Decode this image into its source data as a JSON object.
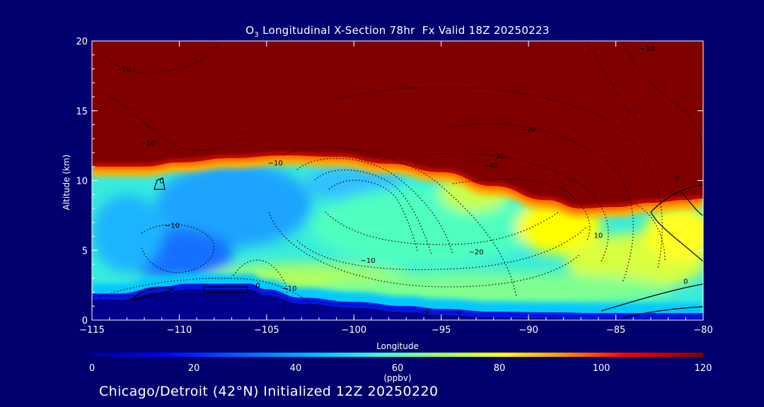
{
  "title": {
    "species": "O",
    "species_sub": "3",
    "text": " Longitudinal X-Section 78hr  Fx Valid 18Z 20250223"
  },
  "footer": "Chicago/Detroit (42°N) Initialized 12Z 20250220",
  "colors": {
    "background": "#00006e",
    "high_ozone": "#800000",
    "colormap": [
      "#00008c",
      "#0000ff",
      "#0064ff",
      "#00c8ff",
      "#40ffd0",
      "#a0ff60",
      "#ffff00",
      "#ff9600",
      "#ff0000",
      "#800000"
    ]
  },
  "chart_data": {
    "type": "heatmap",
    "title": "O3 Longitudinal X-Section 78hr  Fx Valid 18Z 20250223",
    "xlabel": "Longitude",
    "ylabel": "Altitude (km)",
    "xlim": [
      -115,
      -80
    ],
    "ylim": [
      0,
      20
    ],
    "xticks": [
      -115,
      -110,
      -105,
      -100,
      -95,
      -90,
      -85,
      -80
    ],
    "xtick_labels": [
      "−115",
      "−110",
      "−105",
      "−100",
      "−95",
      "−90",
      "−85",
      "−80"
    ],
    "yticks": [
      0,
      5,
      10,
      15,
      20
    ],
    "ytick_labels": [
      "0",
      "5",
      "10",
      "15",
      "20"
    ],
    "colorbar": {
      "label": "(ppbv)",
      "range": [
        0,
        120
      ],
      "ticks": [
        0,
        20,
        40,
        60,
        80,
        100,
        120
      ],
      "tick_labels": [
        "0",
        "20",
        "40",
        "60",
        "80",
        "100",
        "120"
      ]
    },
    "tropopause_altitude_km": {
      "longitude": [
        -115,
        -112,
        -110,
        -107,
        -104,
        -101,
        -98,
        -95,
        -92,
        -89,
        -87,
        -85,
        -83,
        -81,
        -80
      ],
      "altitude": [
        11.0,
        11.0,
        11.3,
        11.6,
        11.8,
        11.7,
        11.2,
        10.6,
        9.6,
        8.6,
        8.0,
        8.1,
        8.4,
        8.6,
        8.7
      ]
    },
    "surface_altitude_km": {
      "longitude": [
        -115,
        -113.5,
        -111,
        -109.5,
        -108,
        -106,
        -105,
        -103,
        -100,
        -97,
        -95,
        -92,
        -89,
        -86,
        -84,
        -82,
        -80
      ],
      "altitude": [
        1.5,
        1.5,
        2.0,
        2.2,
        2.2,
        2.2,
        1.8,
        1.2,
        0.9,
        0.6,
        0.4,
        0.2,
        0.15,
        0.1,
        0.1,
        0.1,
        0.1
      ]
    },
    "contour_labels": [
      {
        "lon": -113.2,
        "alt": 17.8,
        "label": "−10"
      },
      {
        "lon": -111.8,
        "alt": 12.5,
        "label": "−10"
      },
      {
        "lon": -104.5,
        "alt": 11.1,
        "label": "−10"
      },
      {
        "lon": -91.8,
        "alt": 11.6,
        "label": "−30"
      },
      {
        "lon": -92.2,
        "alt": 10.9,
        "label": "−40"
      },
      {
        "lon": -90.0,
        "alt": 13.5,
        "label": "−20"
      },
      {
        "lon": -83.2,
        "alt": 19.3,
        "label": "−10"
      },
      {
        "lon": -110.4,
        "alt": 6.6,
        "label": "−10"
      },
      {
        "lon": -93.0,
        "alt": 4.7,
        "label": "−20"
      },
      {
        "lon": -86.0,
        "alt": 5.9,
        "label": "10"
      },
      {
        "lon": -99.2,
        "alt": 4.1,
        "label": "−10"
      },
      {
        "lon": -103.7,
        "alt": 2.1,
        "label": "−10"
      },
      {
        "lon": -105.5,
        "alt": 2.3,
        "label": "0"
      },
      {
        "lon": -95.8,
        "alt": 0.5,
        "label": "0"
      },
      {
        "lon": -94.0,
        "alt": 0.4,
        "label": "0"
      },
      {
        "lon": -81.0,
        "alt": 2.6,
        "label": "0"
      },
      {
        "lon": -81.5,
        "alt": 10.0,
        "label": "0"
      },
      {
        "lon": -111.0,
        "alt": 9.8,
        "label": "0"
      }
    ]
  }
}
